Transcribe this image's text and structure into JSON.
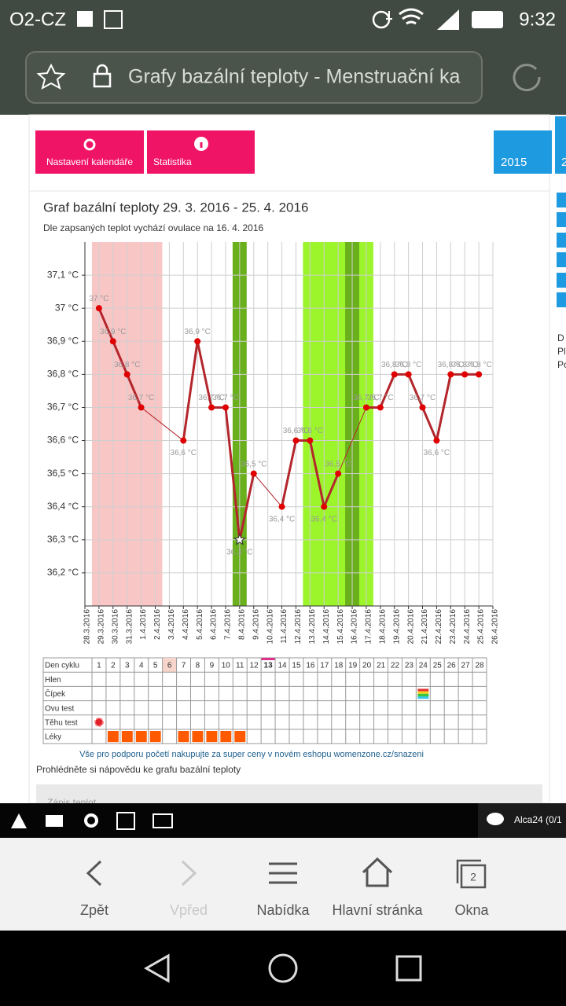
{
  "status": {
    "carrier": "O2-CZ",
    "time": "9:32"
  },
  "browser": {
    "url_title": "Grafy bazální teploty - Menstruační ka"
  },
  "buttons": [
    "Nastavení kalendáře",
    "Statistika"
  ],
  "years": [
    "2015",
    "2"
  ],
  "side_text": [
    "D",
    "Pl",
    "Po"
  ],
  "chart_data": {
    "type": "line",
    "title": "Graf bazální teploty 29. 3. 2016 - 25. 4. 2016",
    "subtitle": "Dle zapsaných teplot vychází ovulace na 16. 4. 2016",
    "categories": [
      "28.3.2016",
      "29.3.2016",
      "30.3.2016",
      "31.3.2016",
      "1.4.2016",
      "2.4.2016",
      "3.4.2016",
      "4.4.2016",
      "5.4.2016",
      "6.4.2016",
      "7.4.2016",
      "8.4.2016",
      "9.4.2016",
      "10.4.2016",
      "11.4.2016",
      "12.4.2016",
      "13.4.2016",
      "14.4.2016",
      "15.4.2016",
      "16.4.2016",
      "17.4.2016",
      "18.4.2016",
      "19.4.2016",
      "20.4.2016",
      "21.4.2016",
      "22.4.2016",
      "23.4.2016",
      "24.4.2016",
      "25.4.2016",
      "26.4.2016"
    ],
    "series": [
      {
        "color": "#b3262c",
        "values": [
          null,
          37,
          36.9,
          36.8,
          36.7,
          null,
          null,
          36.6,
          36.9,
          36.7,
          36.7,
          36.3,
          36.5,
          null,
          36.4,
          36.6,
          36.6,
          36.4,
          36.5,
          null,
          36.7,
          36.7,
          36.8,
          36.8,
          36.7,
          36.6,
          36.8,
          36.8,
          36.8,
          null
        ],
        "value_labels": [
          null,
          "37 °C",
          "36,9 °C",
          "36,8 °C",
          "36,7 °C",
          null,
          null,
          "36,6 °C",
          "36,9 °C",
          "36,7 °C",
          "36,7 °C",
          "36,3 °C",
          "36,5 °C",
          null,
          "36,4 °C",
          "36,6 °C",
          "36,6 °C",
          "36,4 °C",
          "36,5 °C",
          null,
          "36,7 °C",
          "36,7 °C",
          "36,8 °C",
          "36,8 °C",
          "36,7 °C",
          "36,6 °C",
          "36,8 °C",
          "36,8 °C",
          "36,8 °C",
          null
        ]
      }
    ],
    "ylim": [
      36.1,
      37.2
    ],
    "yticks": [
      {
        "value": 36.2,
        "label": "36,2 °C"
      },
      {
        "value": 36.3,
        "label": "36,3 °C"
      },
      {
        "value": 36.4,
        "label": "36,4 °C"
      },
      {
        "value": 36.5,
        "label": "36,5 °C"
      },
      {
        "value": 36.6,
        "label": "36,6 °C"
      },
      {
        "value": 36.7,
        "label": "36,7 °C"
      },
      {
        "value": 36.8,
        "label": "36,8 °C"
      },
      {
        "value": 36.9,
        "label": "36,9 °C"
      },
      {
        "value": 37,
        "label": "37 °C"
      },
      {
        "value": 37.1,
        "label": "37,1 °C"
      }
    ],
    "grid": true,
    "bands": [
      {
        "start": "29.3.2016",
        "end": "2.4.2016",
        "color": "#f9c6c6"
      },
      {
        "start": "8.4.2016",
        "end": "8.4.2016",
        "color": "#6aaf1c"
      },
      {
        "start": "13.4.2016",
        "end": "17.4.2016",
        "color": "#9cf52a"
      },
      {
        "start": "16.4.2016",
        "end": "16.4.2016",
        "color": "#6aaf1c"
      }
    ],
    "star_category": "8.4.2016"
  },
  "cycle_table": {
    "header": "Den cyklu",
    "days": [
      1,
      2,
      3,
      4,
      5,
      6,
      7,
      8,
      9,
      10,
      11,
      12,
      13,
      14,
      15,
      16,
      17,
      18,
      19,
      20,
      21,
      22,
      23,
      24,
      25,
      26,
      27,
      28
    ],
    "header_highlight": 6,
    "today": 13,
    "rows": [
      {
        "label": "Hlen",
        "marker": "none",
        "marks": []
      },
      {
        "label": "Čípek",
        "marker": "stripes",
        "marks": [
          24
        ]
      },
      {
        "label": "Ovu test",
        "marker": "none",
        "marks": []
      },
      {
        "label": "Těhu test",
        "marker": "flower",
        "marks": [
          1
        ]
      },
      {
        "label": "Léky",
        "marker": "square",
        "marks": [
          2,
          3,
          4,
          5,
          7,
          8,
          9,
          10,
          11
        ]
      }
    ]
  },
  "links": [
    "Vše pro podporu početí nakupujte za super ceny v novém eshopu womenzone.cz/snazeni",
    "Prohlédněte si nápovědu ke grafu bazální teploty"
  ],
  "panel_title": "Zápis teplot",
  "toolbar": {
    "user": "Alca24 (0/1"
  },
  "nav": [
    "Zpět",
    "Vpřed",
    "Nabídka",
    "Hlavní stránka",
    "Okna"
  ],
  "tabs_count": "2"
}
